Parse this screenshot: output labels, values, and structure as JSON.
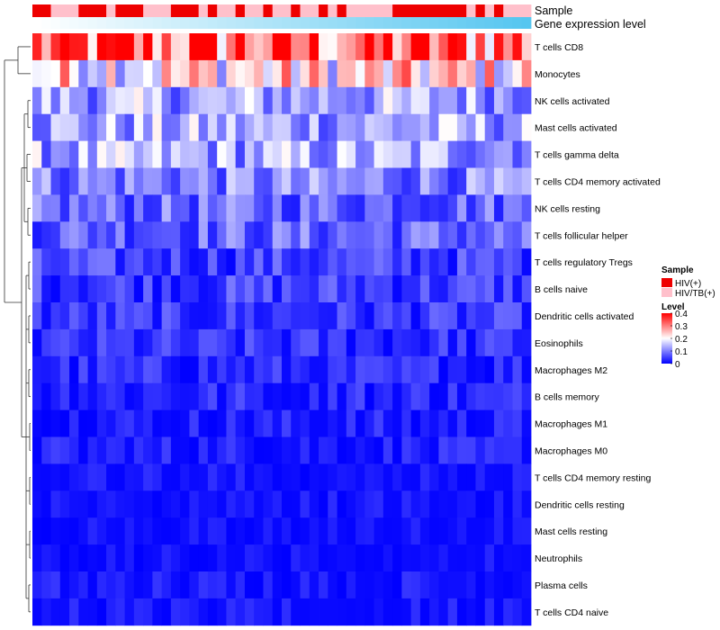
{
  "chart_data": {
    "type": "heatmap",
    "title": "",
    "n_samples": 54,
    "rows": [
      "T cells CD8",
      "Monocytes",
      "NK cells activated",
      "Mast cells activated",
      "T cells gamma delta",
      "T cells CD4 memory activated",
      "NK cells resting",
      "T cells follicular helper",
      "T cells regulatory  Tregs",
      "B cells naive",
      "Dendritic cells activated",
      "Eosinophils",
      "Macrophages M2",
      "B cells memory",
      "Macrophages M1",
      "Macrophages M0",
      "T cells CD4 memory resting",
      "Dendritic cells resting",
      "Mast cells resting",
      "Neutrophils",
      "Plasma cells",
      "T cells CD4 naive"
    ],
    "row_means": [
      0.32,
      0.22,
      0.13,
      0.13,
      0.13,
      0.1,
      0.08,
      0.08,
      0.05,
      0.05,
      0.04,
      0.035,
      0.03,
      0.03,
      0.02,
      0.02,
      0.01,
      0.01,
      0.005,
      0.005,
      0.015,
      0.01
    ],
    "sample_groups": [
      "HIV(+)",
      "HIV(+)",
      "HIV/TB(+)",
      "HIV/TB(+)",
      "HIV/TB(+)",
      "HIV(+)",
      "HIV(+)",
      "HIV(+)",
      "HIV/TB(+)",
      "HIV(+)",
      "HIV(+)",
      "HIV(+)",
      "HIV/TB(+)",
      "HIV/TB(+)",
      "HIV/TB(+)",
      "HIV(+)",
      "HIV(+)",
      "HIV(+)",
      "HIV/TB(+)",
      "HIV(+)",
      "HIV/TB(+)",
      "HIV/TB(+)",
      "HIV(+)",
      "HIV/TB(+)",
      "HIV/TB(+)",
      "HIV(+)",
      "HIV/TB(+)",
      "HIV/TB(+)",
      "HIV(+)",
      "HIV/TB(+)",
      "HIV/TB(+)",
      "HIV(+)",
      "HIV/TB(+)",
      "HIV(+)",
      "HIV/TB(+)",
      "HIV/TB(+)",
      "HIV/TB(+)",
      "HIV/TB(+)",
      "HIV/TB(+)",
      "HIV(+)",
      "HIV(+)",
      "HIV(+)",
      "HIV(+)",
      "HIV(+)",
      "HIV(+)",
      "HIV(+)",
      "HIV(+)",
      "HIV/TB(+)",
      "HIV(+)",
      "HIV/TB(+)",
      "HIV(+)",
      "HIV/TB(+)",
      "HIV/TB(+)",
      "HIV/TB(+)"
    ],
    "annotations": {
      "sample_label": "Sample",
      "expression_label": "Gene expression level",
      "expression_gradient": [
        "#ffffff",
        "#56c6f0"
      ]
    },
    "legend": {
      "sample": {
        "title": "Sample",
        "entries": [
          {
            "label": "HIV(+)",
            "color": "#ee0000"
          },
          {
            "label": "HIV/TB(+)",
            "color": "#ffc0cb"
          }
        ]
      },
      "level": {
        "title": "Level",
        "ticks": [
          "0.4",
          "0.3",
          "0.2",
          "0.1",
          "0"
        ],
        "tick_values": [
          0.4,
          0.3,
          0.2,
          0.1,
          0
        ],
        "range": [
          0,
          0.4
        ],
        "colors": {
          "low": "#0000ff",
          "mid": "#ffffff",
          "high": "#ff0000",
          "mid_value": 0.2
        }
      }
    }
  }
}
